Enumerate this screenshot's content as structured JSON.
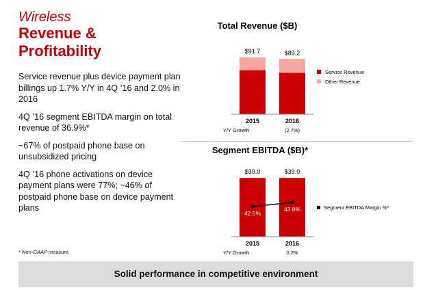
{
  "title": {
    "line1": "Wireless",
    "line2": "Revenue &",
    "line3": "Profitability"
  },
  "bullets": [
    "Service revenue plus device payment plan billings up 1.7% Y/Y in 4Q ’16 and 2.0% in 2016",
    "4Q ’16 segment EBITDA margin on total revenue of 36.9%*",
    "~67% of postpaid phone base on unsubsidized pricing",
    "4Q ’16 phone activations on device payment plans were 77%; ~46% of postpaid phone base on device payment plans"
  ],
  "footnote": "* Non-GAAP measure.",
  "banner": "Solid performance in competitive environment",
  "colors": {
    "accent": "#cc0000",
    "service": "#cc0000",
    "other": "#f4a8a0",
    "banner": "#dcdcdc"
  },
  "chart_data": [
    {
      "type": "bar",
      "stacked": true,
      "title": "Total Revenue ($B)",
      "categories": [
        "2015",
        "2016"
      ],
      "series": [
        {
          "name": "Service Revenue",
          "values": [
            71.1,
            66.8
          ]
        },
        {
          "name": "Other Revenue",
          "values": [
            20.6,
            22.4
          ]
        }
      ],
      "totals": [
        91.7,
        89.2
      ],
      "total_labels": [
        "$91.7",
        "$89.2"
      ],
      "growth_label": "Y/Y Growth",
      "growth_values": [
        "",
        "(2.7%)"
      ],
      "legend": "right",
      "ylim": [
        0,
        95
      ],
      "grid": false
    },
    {
      "type": "bar",
      "title": "Segment EBITDA ($B)*",
      "categories": [
        "2015",
        "2016"
      ],
      "values": [
        39.0,
        39.0
      ],
      "value_labels": [
        "$39.0",
        "$39.0"
      ],
      "line_series": {
        "name": "Segment EBITDA Margin %*",
        "values": [
          42.5,
          43.8
        ],
        "labels": [
          "42.5%",
          "43.8%"
        ]
      },
      "growth_label": "Y/Y Growth",
      "growth_values": [
        "",
        "0.2%"
      ],
      "legend": "right",
      "ylim": [
        0,
        40
      ],
      "grid": false
    }
  ]
}
